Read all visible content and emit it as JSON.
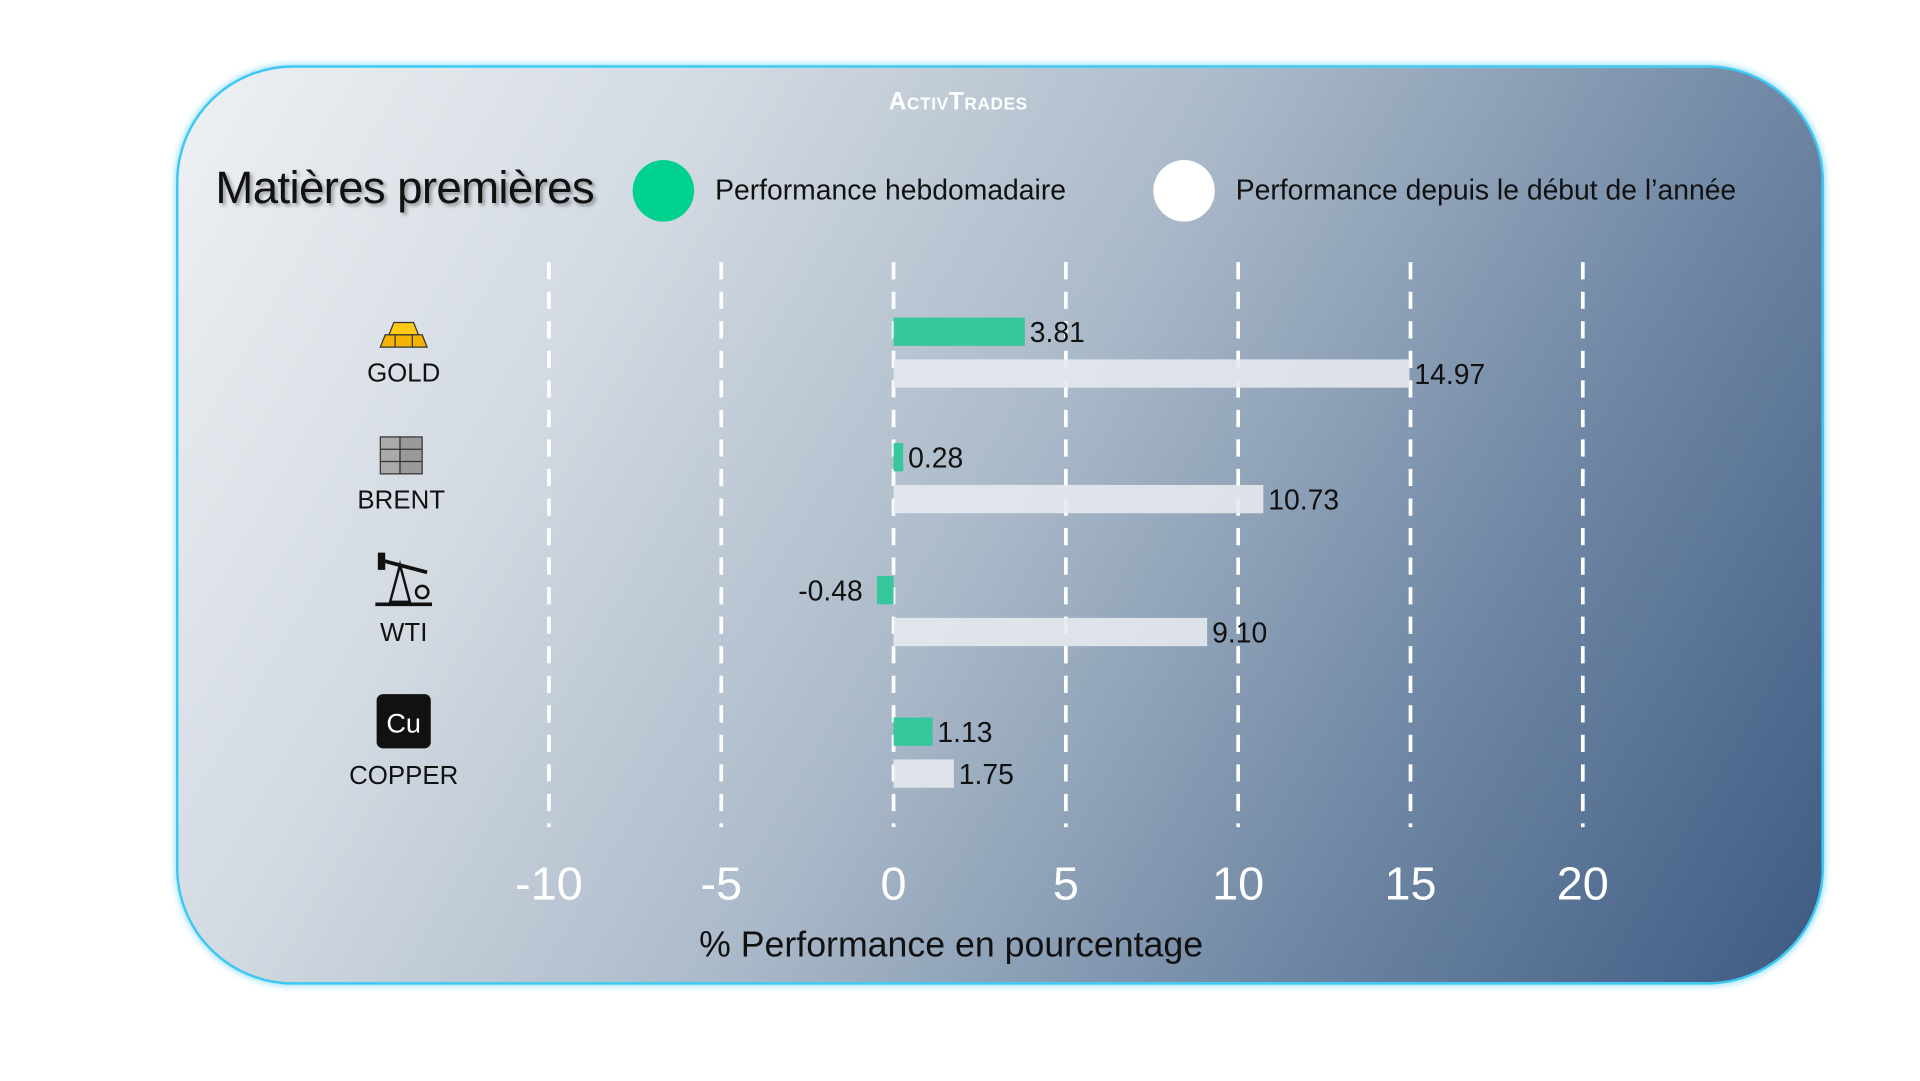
{
  "brand": "ActivTrades",
  "chart_data": {
    "type": "bar",
    "orientation": "horizontal",
    "title": "Matières premières",
    "xlabel": "% Performance en pourcentage",
    "xlim": [
      -10,
      20
    ],
    "xticks": [
      "-10",
      "-5",
      "0",
      "5",
      "10",
      "15",
      "20"
    ],
    "grid": "vertical dashed",
    "legend_placement": "top",
    "categories": [
      "GOLD",
      "BRENT",
      "WTI",
      "COPPER"
    ],
    "series": [
      {
        "name": "Performance hebdomadaire",
        "color": "#00d18f",
        "values": [
          3.81,
          0.28,
          -0.48,
          1.13
        ],
        "labels": [
          "3.81",
          "0.28",
          "-0.48",
          "1.13"
        ]
      },
      {
        "name": "Performance depuis le début de l’année",
        "color": "#ffffff",
        "values": [
          14.97,
          10.73,
          9.1,
          1.75
        ],
        "labels": [
          "14.97",
          "10.73",
          "9.10",
          "1.75"
        ]
      }
    ]
  },
  "icons": [
    "gold-bars-icon",
    "oil-barrels-icon",
    "oil-pump-icon",
    "copper-element-icon"
  ]
}
